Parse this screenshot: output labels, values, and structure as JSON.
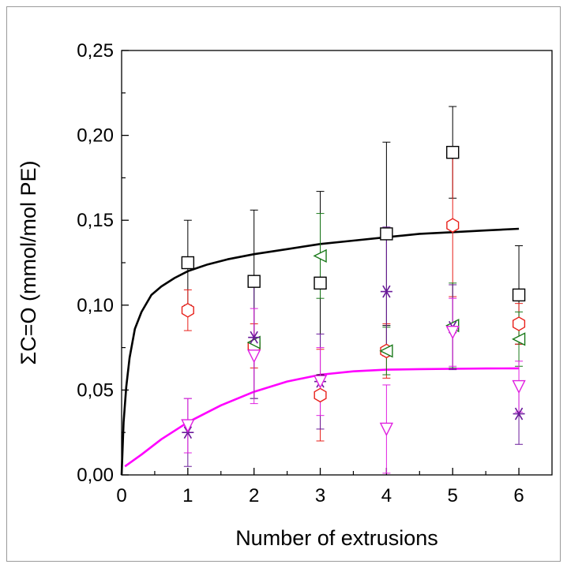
{
  "chart_data": {
    "type": "scatter",
    "xlabel": "Number of extrusions",
    "ylabel": "ΣC=O (mmol/mol PE)",
    "xlim": [
      0,
      6.5
    ],
    "ylim": [
      0,
      0.25
    ],
    "xticks": [
      "0",
      "1",
      "2",
      "3",
      "4",
      "5",
      "6"
    ],
    "yticks": [
      "0,00",
      "0,05",
      "0,10",
      "0,15",
      "0,20",
      "0,25"
    ],
    "grid": false,
    "series": [
      {
        "marker": "square",
        "color": "#000000",
        "x": [
          1,
          2,
          3,
          4,
          5,
          6
        ],
        "y": [
          0.125,
          0.114,
          0.113,
          0.142,
          0.19,
          0.106
        ],
        "err": [
          0.025,
          0.042,
          0.054,
          0.054,
          0.027,
          0.029
        ]
      },
      {
        "marker": "hexagon",
        "color": "#e8201a",
        "x": [
          1,
          2,
          3,
          4,
          5,
          6
        ],
        "y": [
          0.097,
          0.076,
          0.047,
          0.073,
          0.147,
          0.089
        ],
        "err": [
          0.012,
          0.013,
          0.027,
          0.016,
          0.042,
          0.012
        ]
      },
      {
        "marker": "triangle-left",
        "color": "#1a7a1a",
        "x": [
          2,
          3,
          4,
          5,
          6
        ],
        "y": [
          0.078,
          0.129,
          0.073,
          0.088,
          0.08
        ],
        "err": [
          0.033,
          0.025,
          0.014,
          0.025,
          0.016
        ]
      },
      {
        "marker": "asterisk",
        "color": "#6a1a9a",
        "x": [
          1,
          2,
          3,
          4,
          5,
          6
        ],
        "y": [
          0.025,
          0.081,
          0.055,
          0.108,
          0.087,
          0.036
        ],
        "err": [
          0.02,
          0.036,
          0.028,
          0.038,
          0.025,
          0.018
        ]
      },
      {
        "marker": "triangle-down",
        "color": "#e020e0",
        "x": [
          1,
          2,
          3,
          4,
          5,
          6
        ],
        "y": [
          0.029,
          0.07,
          0.055,
          0.027,
          0.084,
          0.052
        ],
        "err": [
          0.016,
          0.028,
          0.02,
          0.026,
          0.02,
          0.015
        ]
      }
    ],
    "fits": [
      {
        "color": "#000000",
        "x": [
          0,
          0.03,
          0.07,
          0.12,
          0.2,
          0.3,
          0.45,
          0.6,
          0.8,
          1,
          1.3,
          1.6,
          2,
          2.5,
          3,
          3.5,
          4,
          4.5,
          5,
          5.5,
          6
        ],
        "y": [
          0,
          0.031,
          0.052,
          0.069,
          0.086,
          0.096,
          0.106,
          0.111,
          0.116,
          0.12,
          0.124,
          0.127,
          0.13,
          0.133,
          0.136,
          0.138,
          0.14,
          0.142,
          0.143,
          0.144,
          0.145
        ]
      },
      {
        "color": "#ff00ff",
        "x": [
          0.05,
          0.3,
          0.6,
          1,
          1.5,
          2,
          2.5,
          3,
          3.5,
          4,
          4.5,
          5,
          5.5,
          6
        ],
        "y": [
          0.005,
          0.012,
          0.021,
          0.031,
          0.041,
          0.049,
          0.055,
          0.059,
          0.061,
          0.062,
          0.0623,
          0.0625,
          0.0627,
          0.0628
        ]
      }
    ]
  }
}
